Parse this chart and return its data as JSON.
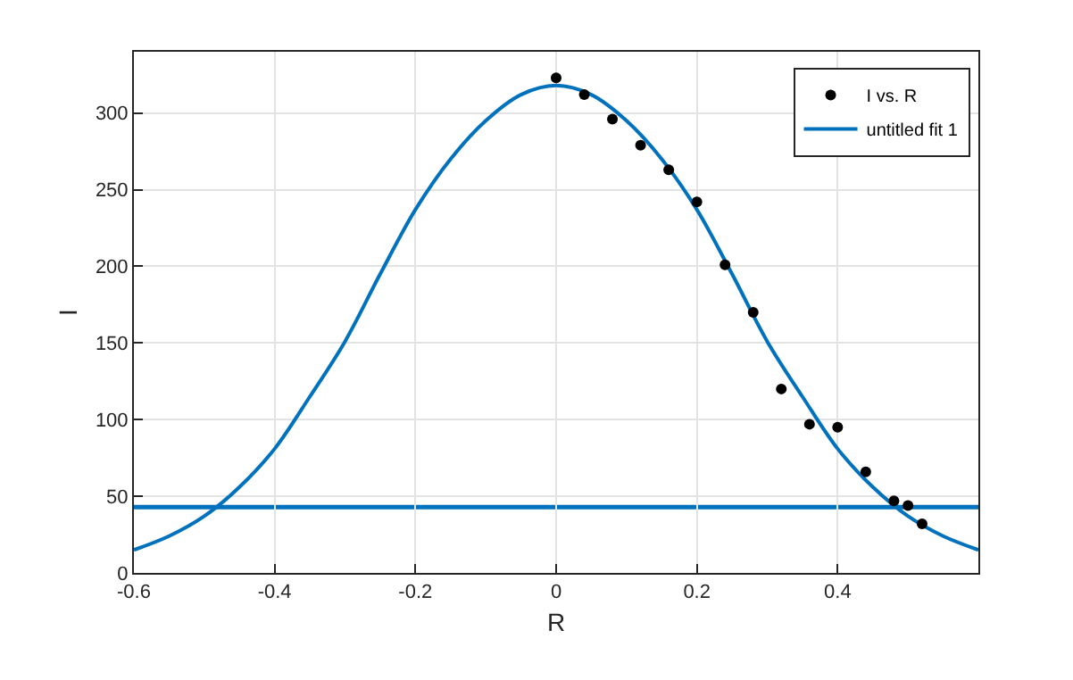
{
  "chart_data": {
    "type": "scatter",
    "xlabel": "R",
    "ylabel": "I",
    "xlim": [
      -0.6,
      0.6
    ],
    "ylim": [
      0,
      340
    ],
    "xticks": [
      -0.6,
      -0.4,
      -0.2,
      0,
      0.2,
      0.4
    ],
    "yticks": [
      0,
      50,
      100,
      150,
      200,
      250,
      300
    ],
    "grid": true,
    "legend": "top right",
    "series": [
      {
        "name": "I vs. R",
        "marker": "circle",
        "color": "#000000",
        "x": [
          0,
          0.04,
          0.08,
          0.12,
          0.16,
          0.2,
          0.24,
          0.28,
          0.32,
          0.36,
          0.4,
          0.44,
          0.48,
          0.5,
          0.52
        ],
        "values": [
          323,
          312,
          296,
          279,
          263,
          242,
          201,
          170,
          120,
          97,
          95,
          66,
          47,
          44,
          32
        ]
      },
      {
        "name": "untitled fit 1",
        "type": "line",
        "marker": "none",
        "color": "#0072bd",
        "x": [
          -0.6,
          -0.55,
          -0.5,
          -0.45,
          -0.4,
          -0.35,
          -0.3,
          -0.25,
          -0.2,
          -0.15,
          -0.1,
          -0.05,
          0,
          0.05,
          0.1,
          0.15,
          0.2,
          0.25,
          0.3,
          0.35,
          0.4,
          0.45,
          0.5,
          0.55,
          0.6
        ],
        "values": [
          15,
          24,
          37,
          56,
          81,
          115,
          151,
          195,
          237,
          270,
          295,
          312,
          318,
          312,
          295,
          270,
          237,
          195,
          151,
          115,
          81,
          56,
          37,
          24,
          15
        ]
      }
    ],
    "ref_lines": [
      {
        "axis": "y",
        "value": 43,
        "color": "#0072bd",
        "line_style": "solid"
      }
    ]
  }
}
